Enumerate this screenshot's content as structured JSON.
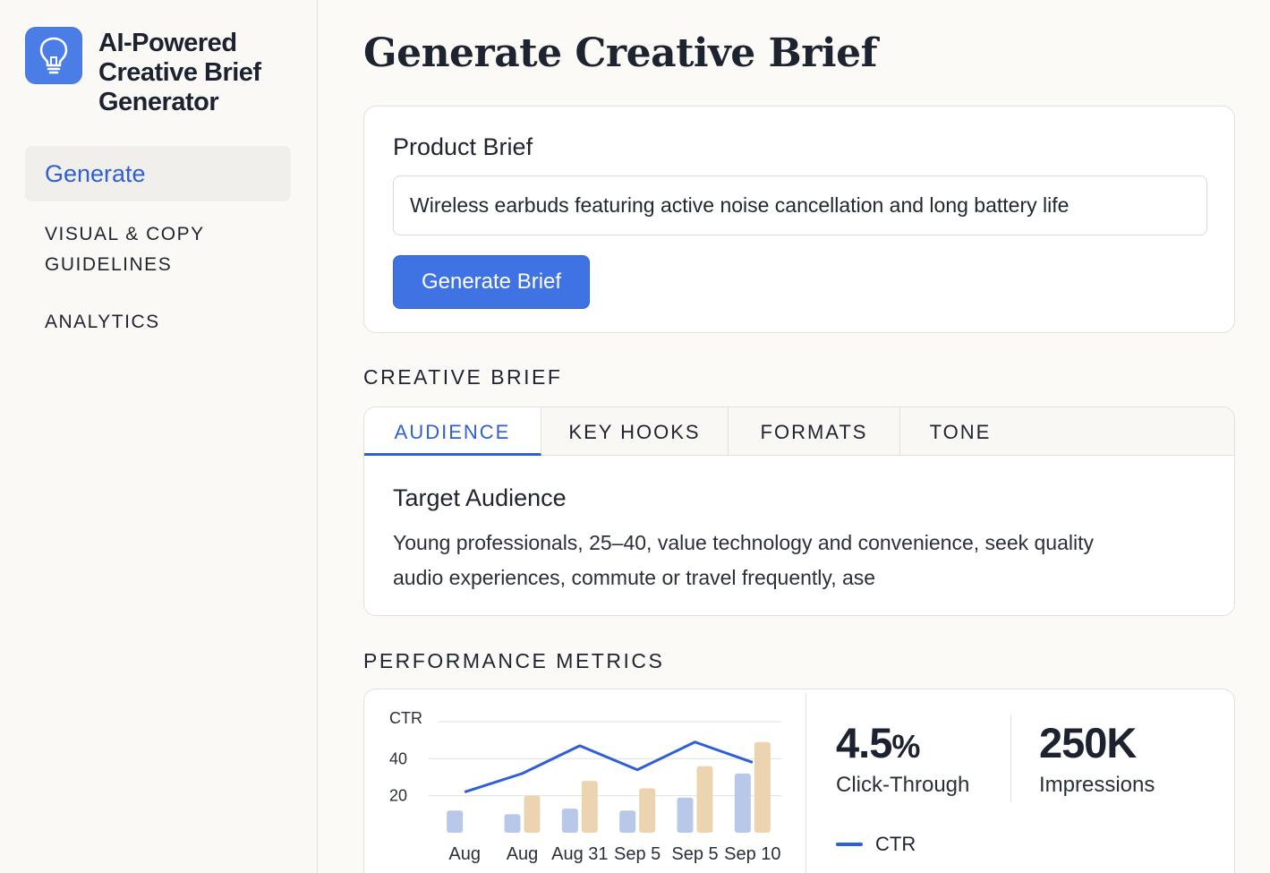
{
  "app": {
    "title": "AI-Powered Creative Brief Generator",
    "logo_icon": "lightbulb-icon",
    "accent": "#4a7ee6"
  },
  "sidebar": {
    "items": [
      {
        "label": "Generate",
        "active": true
      },
      {
        "label": "VISUAL & COPY GUIDELINES",
        "active": false
      },
      {
        "label": "ANALYTICS",
        "active": false
      }
    ]
  },
  "page": {
    "title": "Generate Creative Brief"
  },
  "product_brief": {
    "label": "Product Brief",
    "input_value": "Wireless earbuds featuring active noise cancellation and long battery life",
    "button_label": "Generate Brief"
  },
  "creative_brief": {
    "heading": "CREATIVE BRIEF",
    "tabs": [
      {
        "label": "AUDIENCE",
        "active": true
      },
      {
        "label": "KEY HOOKS",
        "active": false
      },
      {
        "label": "FORMATS",
        "active": false
      },
      {
        "label": "TONE",
        "active": false
      }
    ],
    "panel_title": "Target Audience",
    "panel_text": "Young professionals,  25–40, value technology and convenience, seek quality audio experiences, commute or travel frequently, ase"
  },
  "performance": {
    "heading": "PERFORMANCE METRICS",
    "metrics": [
      {
        "value": "4.5",
        "unit": "%",
        "label": "Click-Through"
      },
      {
        "value": "250K",
        "unit": "",
        "label": "Impressions"
      }
    ],
    "legend": {
      "label": "CTR",
      "color": "#2f5fd6"
    }
  },
  "chart_data": {
    "type": "bar",
    "ylabel": "CTR",
    "y_ticks": [
      20,
      40
    ],
    "ylim": [
      0,
      60
    ],
    "categories": [
      "Aug",
      "Aug",
      "Aug 31",
      "Sep 5",
      "Sep 5",
      "Sep 10"
    ],
    "series": [
      {
        "kind": "bar",
        "color": "#b8c8e8",
        "values": [
          12,
          10,
          13,
          12,
          19,
          32
        ]
      },
      {
        "kind": "bar",
        "color": "#ecd4b0",
        "values": [
          null,
          20,
          28,
          24,
          36,
          49
        ]
      },
      {
        "name": "CTR",
        "kind": "line",
        "color": "#2f5fd6",
        "values": [
          22,
          32,
          47,
          34,
          49,
          38
        ]
      }
    ]
  }
}
